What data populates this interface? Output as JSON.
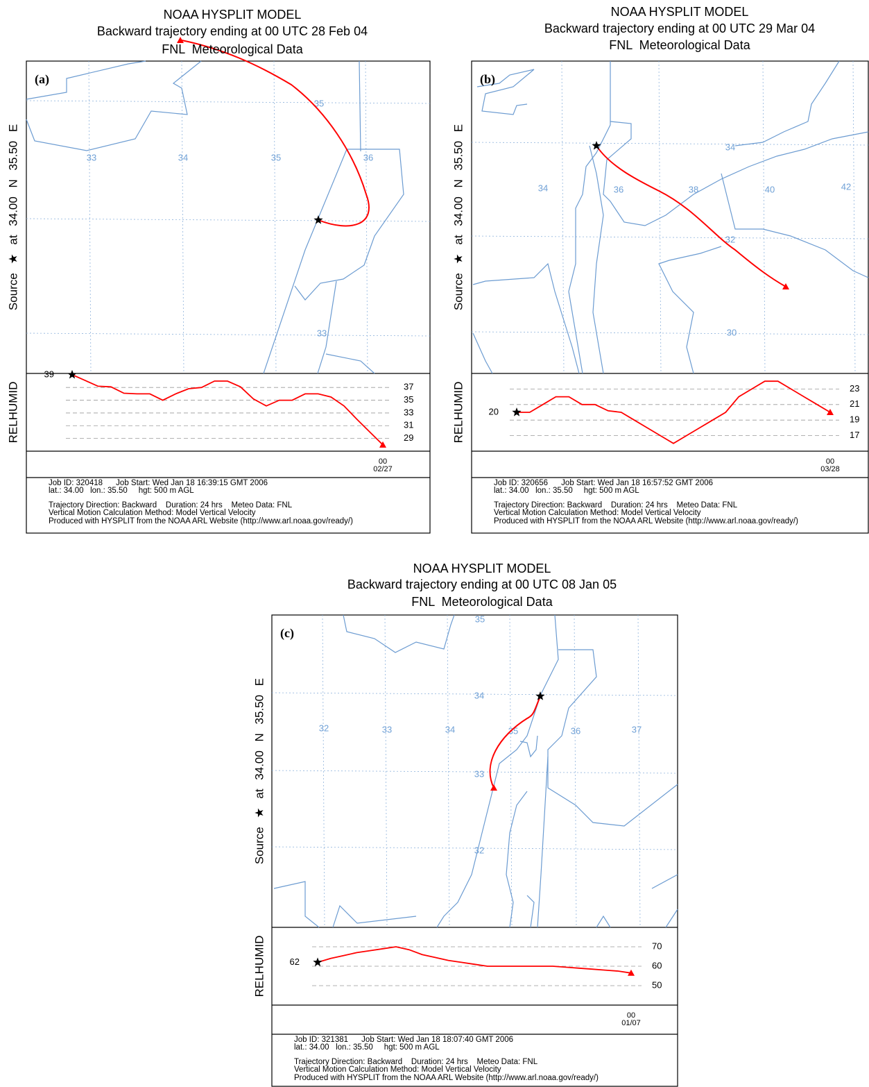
{
  "chart_data": [
    {
      "type": "line",
      "title": "NOAA HYSPLIT MODEL",
      "subtitle": "Backward trajectory ending at 00 UTC 28 Feb 04",
      "data_source": "FNL  Meteorological Data",
      "panel_label": "(a)",
      "source_label": "Source ★ at 34.00 N 35.50 E",
      "y_label": "RELHUMID",
      "x_label_lines": [
        "00",
        "02/27"
      ],
      "map_labels": [
        "35",
        "33",
        "34",
        "35",
        "36",
        "33"
      ],
      "values": [
        39,
        38.1,
        37.2,
        37.1,
        36.1,
        36,
        36,
        35,
        36,
        36.8,
        37,
        38,
        38,
        37.1,
        35.2,
        34.1,
        35,
        35,
        36,
        36,
        35.5,
        34.1,
        32,
        30,
        28
      ],
      "ylim": [
        27,
        39.2
      ],
      "yticks": [
        37,
        35,
        33,
        31,
        29
      ],
      "color": "#ff0000",
      "footer": [
        "Job ID: 320418      Job Start: Wed Jan 18 16:39:15 GMT 2006",
        "lat.: 34.00   lon.: 35.50     hgt: 500 m AGL",
        "Trajectory Direction: Backward    Duration: 24 hrs    Meteo Data: FNL",
        "Vertical Motion Calculation Method: Model Vertical Velocity",
        "Produced with HYSPLIT from the NOAA ARL Website (http://www.arl.noaa.gov/ready/)"
      ]
    },
    {
      "type": "line",
      "title": "NOAA HYSPLIT MODEL",
      "subtitle": "Backward trajectory ending at 00 UTC 29 Mar 04",
      "data_source": "FNL  Meteorological Data",
      "panel_label": "(b)",
      "source_label": "Source ★ at 34.00 N 35.50 E",
      "y_label": "RELHUMID",
      "x_label_lines": [
        "00",
        "03/28"
      ],
      "map_labels": [
        "34",
        "34",
        "36",
        "38",
        "40",
        "42",
        "32",
        "30"
      ],
      "values": [
        20,
        20,
        21,
        22,
        22,
        21,
        21,
        20.2,
        20,
        19,
        18,
        17,
        16,
        17,
        18,
        19,
        20,
        22,
        23,
        24,
        24,
        23,
        22,
        21,
        20
      ],
      "ylim": [
        15,
        25
      ],
      "yticks": [
        23,
        21,
        19,
        17
      ],
      "color": "#ff0000",
      "footer": [
        "Job ID: 320656      Job Start: Wed Jan 18 16:57:52 GMT 2006",
        "lat.: 34.00   lon.: 35.50     hgt: 500 m AGL",
        "Trajectory Direction: Backward    Duration: 24 hrs    Meteo Data: FNL",
        "Vertical Motion Calculation Method: Model Vertical Velocity",
        "Produced with HYSPLIT from the NOAA ARL Website (http://www.arl.noaa.gov/ready/)"
      ]
    },
    {
      "type": "line",
      "title": "NOAA HYSPLIT MODEL",
      "subtitle": "Backward trajectory ending at 00 UTC 08 Jan 05",
      "data_source": "FNL  Meteorological Data",
      "panel_label": "(c)",
      "source_label": "Source ★ at 34.00 N 35.50 E",
      "y_label": "RELHUMID",
      "x_label_lines": [
        "00",
        "01/07"
      ],
      "map_labels": [
        "35",
        "34",
        "32",
        "33",
        "34",
        "35",
        "36",
        "37",
        "33",
        "32"
      ],
      "values": [
        62,
        64,
        65.5,
        67,
        68,
        69,
        70,
        68.5,
        66,
        64.5,
        63,
        62,
        61,
        60,
        60,
        60,
        60,
        60,
        60,
        59.5,
        59,
        58.5,
        58,
        57.5,
        56.5
      ],
      "ylim": [
        40,
        80
      ],
      "yticks": [
        70,
        60,
        50
      ],
      "color": "#ff0000",
      "footer": [
        "Job ID: 321381      Job Start: Wed Jan 18 18:07:40 GMT 2006",
        "lat.: 34.00   lon.: 35.50     hgt: 500 m AGL",
        "Trajectory Direction: Backward    Duration: 24 hrs    Meteo Data: FNL",
        "Vertical Motion Calculation Method: Model Vertical Velocity",
        "Produced with HYSPLIT from the NOAA ARL Website (http://www.arl.noaa.gov/ready/)"
      ]
    }
  ]
}
